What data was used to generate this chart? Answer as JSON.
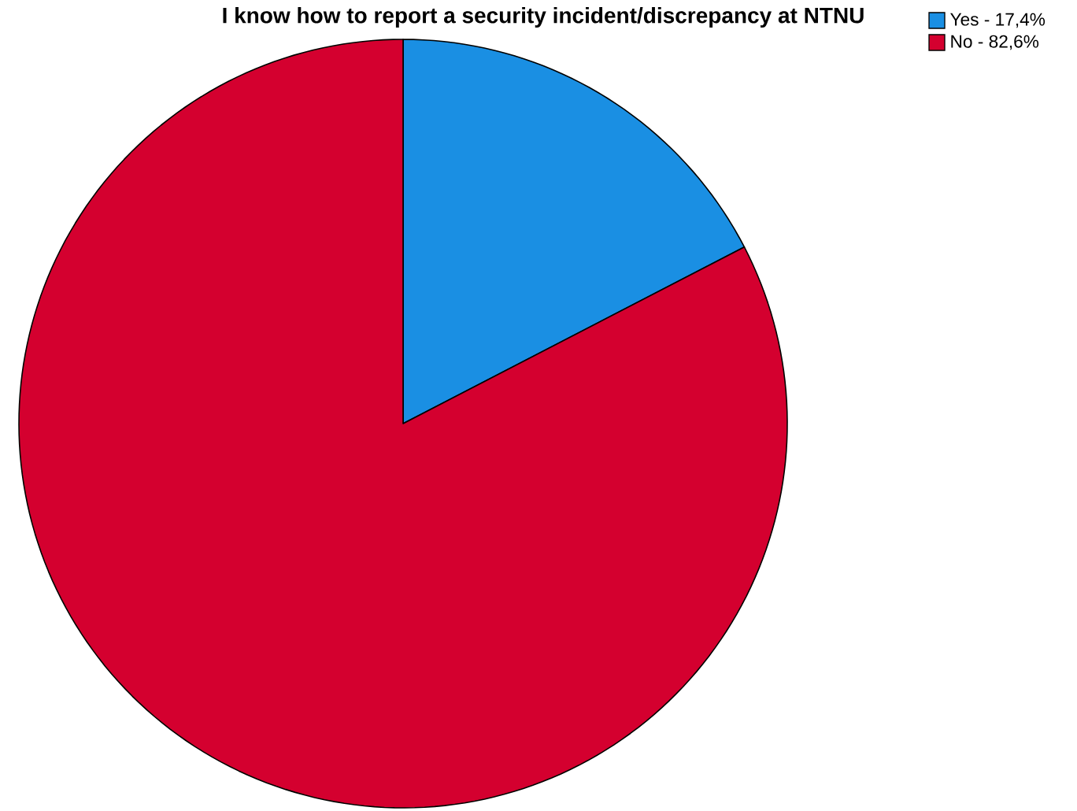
{
  "chart_data": {
    "type": "pie",
    "title": "I know how to report a security incident/discrepancy at NTNU",
    "categories": [
      "Yes - 17,4%",
      "No - 82,6%"
    ],
    "values": [
      17.4,
      82.6
    ],
    "colors": [
      "#1a8fe3",
      "#d4002f"
    ],
    "legend": "top right"
  }
}
